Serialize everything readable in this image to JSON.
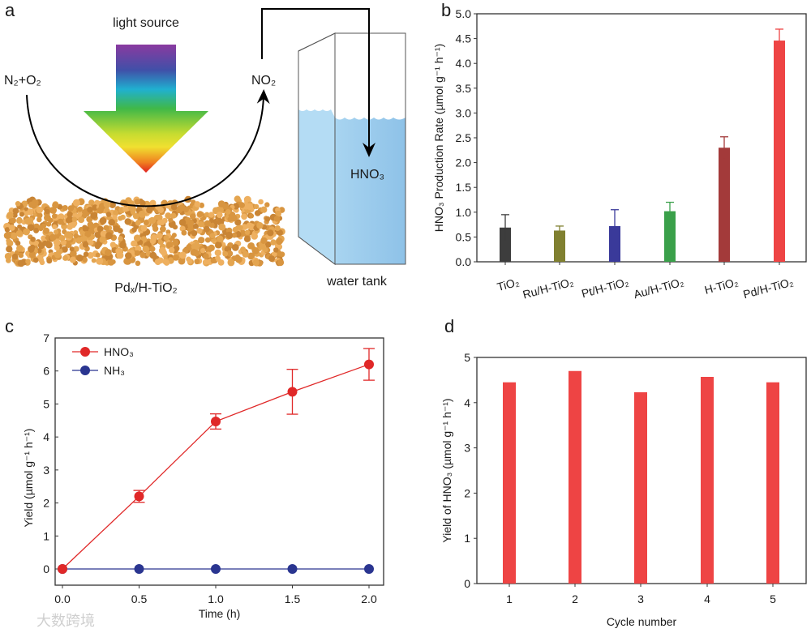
{
  "panel_a": {
    "letter": "a",
    "light_source": "light source",
    "reactants": "N₂+O₂",
    "intermediate": "NO₂",
    "product": "HNO₃",
    "catalyst": "Pdₓ/H-TiO₂",
    "tank": "water tank"
  },
  "watermark": "大数跨境",
  "chart_data": [
    {
      "panel": "b",
      "type": "bar",
      "title": "",
      "xlabel": "",
      "ylabel": "HNO₃ Production Rate (µmol g⁻¹ h⁻¹)",
      "ylim": [
        0,
        5.0
      ],
      "yticks": [
        "0.0",
        "0.5",
        "1.0",
        "1.5",
        "2.0",
        "2.5",
        "3.0",
        "3.5",
        "4.0",
        "4.5",
        "5.0"
      ],
      "categories": [
        "TiO₂",
        "Ru/H-TiO₂",
        "Pt/H-TiO₂",
        "Au/H-TiO₂",
        "H-TiO₂",
        "Pd/H-TiO₂"
      ],
      "values": [
        0.69,
        0.63,
        0.72,
        1.02,
        2.3,
        4.46
      ],
      "errors": [
        0.26,
        0.09,
        0.33,
        0.18,
        0.22,
        0.23
      ],
      "colors": [
        "#3d3d3d",
        "#808030",
        "#3a3a9a",
        "#3aa04a",
        "#a33a3a",
        "#ee4444"
      ],
      "grid": false
    },
    {
      "panel": "c",
      "type": "line",
      "title": "",
      "xlabel": "Time (h)",
      "ylabel": "Yield (µmol g⁻¹ h⁻¹)",
      "xlim": [
        -0.1,
        2.15
      ],
      "ylim": [
        -0.5,
        7
      ],
      "xticks": [
        "0.0",
        "0.5",
        "1.0",
        "1.5",
        "2.0"
      ],
      "yticks": [
        "0",
        "1",
        "2",
        "3",
        "4",
        "5",
        "6",
        "7"
      ],
      "x": [
        0,
        0.5,
        1.0,
        1.5,
        2.0
      ],
      "series": [
        {
          "name": "HNO₃",
          "values": [
            0,
            2.2,
            4.47,
            5.37,
            6.2
          ],
          "errors": [
            0,
            0.18,
            0.23,
            0.68,
            0.48
          ],
          "color": "#e02828"
        },
        {
          "name": "NH₃",
          "values": [
            0,
            0,
            0,
            0,
            0
          ],
          "errors": [
            0,
            0,
            0,
            0,
            0
          ],
          "color": "#2a3590"
        }
      ],
      "legend": "top-left",
      "grid": false
    },
    {
      "panel": "d",
      "type": "bar",
      "title": "",
      "xlabel": "Cycle number",
      "ylabel": "Yield of HNO₃ (µmol g⁻¹ h⁻¹)",
      "ylim": [
        0,
        5
      ],
      "yticks": [
        "0",
        "1",
        "2",
        "3",
        "4",
        "5"
      ],
      "categories": [
        "1",
        "2",
        "3",
        "4",
        "5"
      ],
      "values": [
        4.45,
        4.7,
        4.23,
        4.57,
        4.45
      ],
      "color": "#ee4444",
      "grid": false
    }
  ]
}
